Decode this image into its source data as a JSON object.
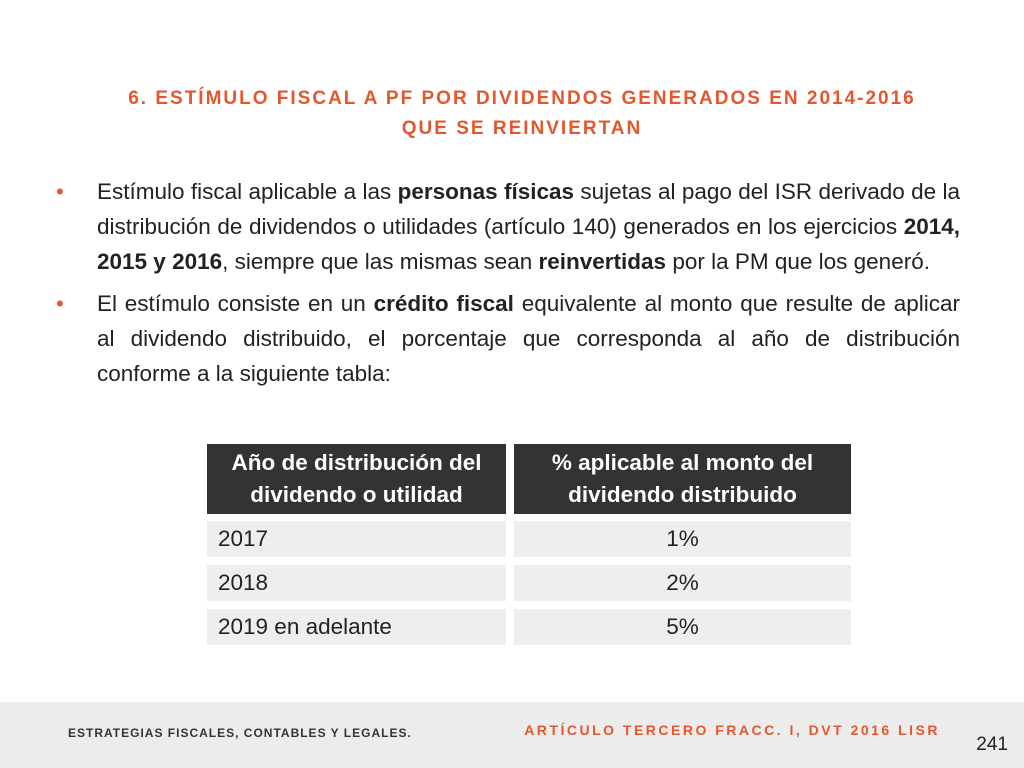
{
  "title": {
    "line1": "6. ESTÍMULO FISCAL A PF POR DIVIDENDOS GENERADOS EN 2014-2016",
    "line2": "QUE SE REINVIERTAN"
  },
  "bullets": {
    "b1": {
      "t1": "Estímulo fiscal aplicable a las ",
      "bold1": "personas físicas",
      "t2": " sujetas al pago del ISR derivado de la distribución de dividendos o utilidades (artículo 140) generados en los ejercicios ",
      "bold2": "2014, 2015 y 2016",
      "t3": ", siempre que las mismas sean ",
      "bold3": "reinvertidas",
      "t4": " por la PM que los generó."
    },
    "b2": {
      "t1": "El estímulo consiste en un ",
      "bold1": "crédito fiscal",
      "t2": " equivalente al monto que resulte de aplicar al dividendo distribuido, el porcentaje que corresponda al año de distribución conforme a la siguiente tabla:"
    }
  },
  "table": {
    "headers": [
      "Año de distribución del dividendo o utilidad",
      "% aplicable al monto del dividendo distribuido"
    ],
    "rows": [
      {
        "year": "2017",
        "pct": "1%"
      },
      {
        "year": "2018",
        "pct": "2%"
      },
      {
        "year": "2019 en adelante",
        "pct": "5%"
      }
    ]
  },
  "footer": {
    "left": "ESTRATEGIAS FISCALES, CONTABLES Y LEGALES.",
    "right": "ARTÍCULO TERCERO FRACC. I, DVT 2016 LISR",
    "page": "241"
  },
  "colors": {
    "accent": "#e4572e",
    "header_bg": "#333333",
    "cell_bg": "#eeeeee",
    "footer_bg": "#ececec"
  }
}
